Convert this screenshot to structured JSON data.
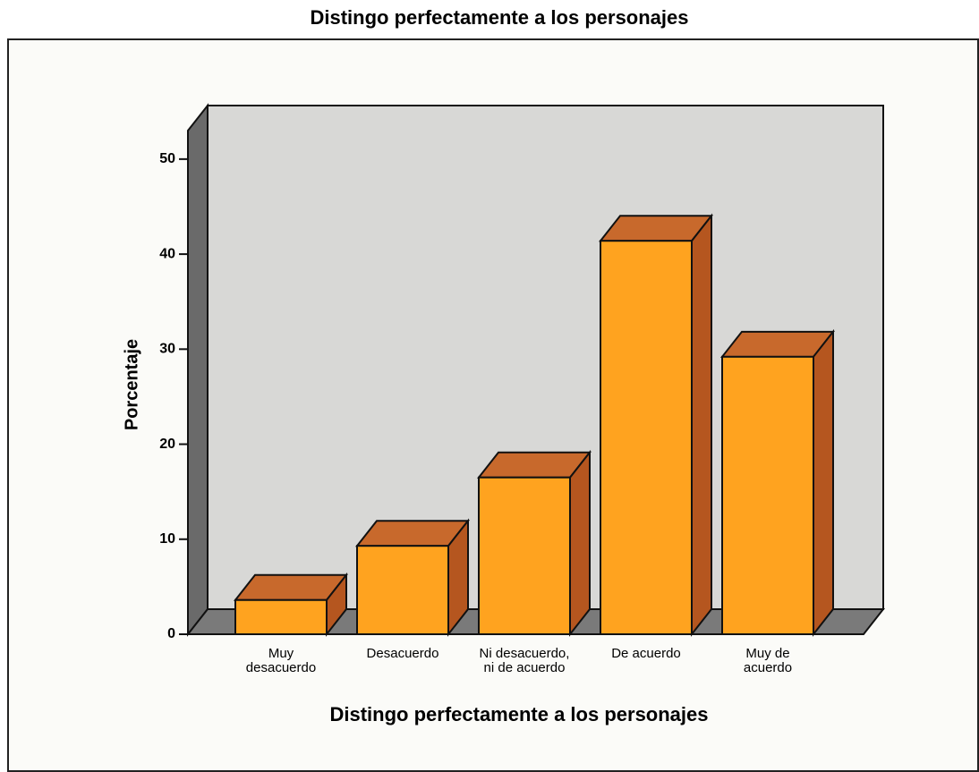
{
  "chart_data": {
    "type": "bar3d",
    "title": "Distingo perfectamente a los personajes",
    "xlabel": "Distingo perfectamente a los personajes",
    "ylabel": "Porcentaje",
    "categories": [
      "Muy\ndesacuerdo",
      "Desacuerdo",
      "Ni desacuerdo,\nni de acuerdo",
      "De acuerdo",
      "Muy de\nacuerdo"
    ],
    "values": [
      3.6,
      9.3,
      16.5,
      41.4,
      29.2
    ],
    "color": "#ffa31f",
    "ylim": [
      0,
      53
    ],
    "yticks": [
      0,
      10,
      20,
      30,
      40,
      50
    ]
  }
}
